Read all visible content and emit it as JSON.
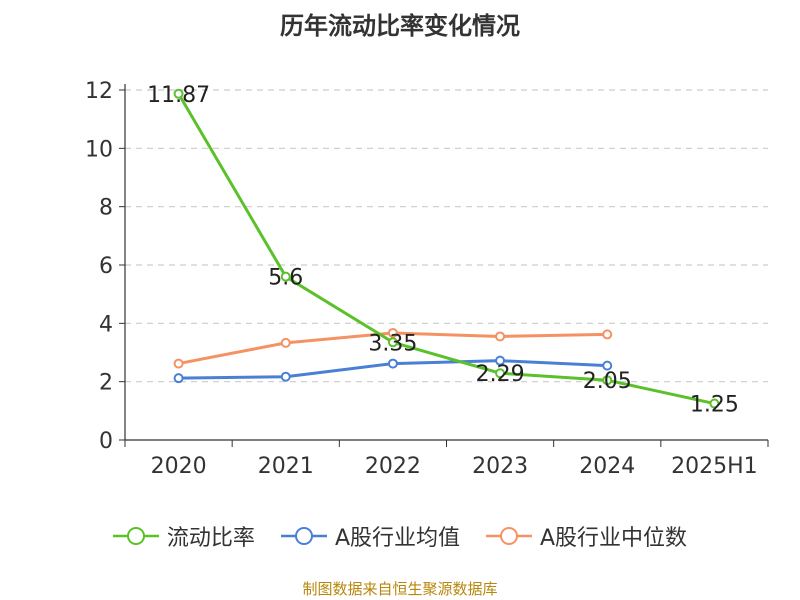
{
  "chart_data": {
    "type": "line",
    "title": "历年流动比率变化情况",
    "categories": [
      "2020",
      "2021",
      "2022",
      "2023",
      "2024",
      "2025H1"
    ],
    "ylim": [
      0,
      12
    ],
    "yticks": [
      0,
      2,
      4,
      6,
      8,
      10,
      12
    ],
    "grid": "horizontal-dashed",
    "legend_position": "bottom",
    "series": [
      {
        "name": "流动比率",
        "color": "#5ac12b",
        "values": [
          11.87,
          5.6,
          3.35,
          2.29,
          2.05,
          1.25
        ],
        "labels": [
          "11.87",
          "5.6",
          "3.35",
          "2.29",
          "2.05",
          "1.25"
        ]
      },
      {
        "name": "A股行业均值",
        "color": "#4a7fd6",
        "values": [
          2.12,
          2.17,
          2.62,
          2.72,
          2.55,
          null
        ]
      },
      {
        "name": "A股行业中位数",
        "color": "#f59263",
        "values": [
          2.62,
          3.33,
          3.67,
          3.55,
          3.62,
          null
        ]
      }
    ]
  },
  "source_text": "制图数据来自恒生聚源数据库"
}
